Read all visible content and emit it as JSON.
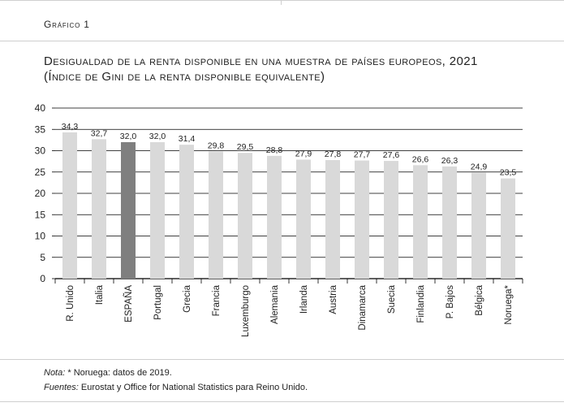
{
  "header": {
    "label": "Gráfico 1",
    "title": "Desigualdad de la renta disponible en una muestra de países europeos, 2021",
    "subtitle": "(Índice de Gini de la renta disponible equivalente)"
  },
  "colors": {
    "bar": "#d9d9d9",
    "highlight": "#7f7f7f",
    "grid": "#000000"
  },
  "chart_data": {
    "type": "bar",
    "categories": [
      "R. Unido",
      "Italia",
      "ESPAÑA",
      "Portugal",
      "Grecia",
      "Francia",
      "Luxemburgo",
      "Alemania",
      "Irlanda",
      "Austria",
      "Dinamarca",
      "Suecia",
      "Finlandia",
      "P. Bajos",
      "Bélgica",
      "Noruega*"
    ],
    "values": [
      34.3,
      32.7,
      32.0,
      32.0,
      31.4,
      29.8,
      29.5,
      28.8,
      27.9,
      27.8,
      27.7,
      27.6,
      26.6,
      26.3,
      24.9,
      23.5
    ],
    "value_labels": [
      "34,3",
      "32,7",
      "32,0",
      "32,0",
      "31,4",
      "29,8",
      "29,5",
      "28,8",
      "27,9",
      "27,8",
      "27,7",
      "27,6",
      "26,6",
      "26,3",
      "24,9",
      "23,5"
    ],
    "highlight": "ESPAÑA",
    "ylim": [
      0,
      40
    ],
    "yticks": [
      0,
      5,
      10,
      15,
      20,
      25,
      30,
      35,
      40
    ],
    "grid": true,
    "xlabel": "",
    "ylabel": ""
  },
  "notes": {
    "nota_label": "Nota:",
    "nota_text": " * Noruega: datos de 2019.",
    "fuentes_label": "Fuentes:",
    "fuentes_text": " Eurostat y Office for National Statistics para Reino Unido."
  }
}
